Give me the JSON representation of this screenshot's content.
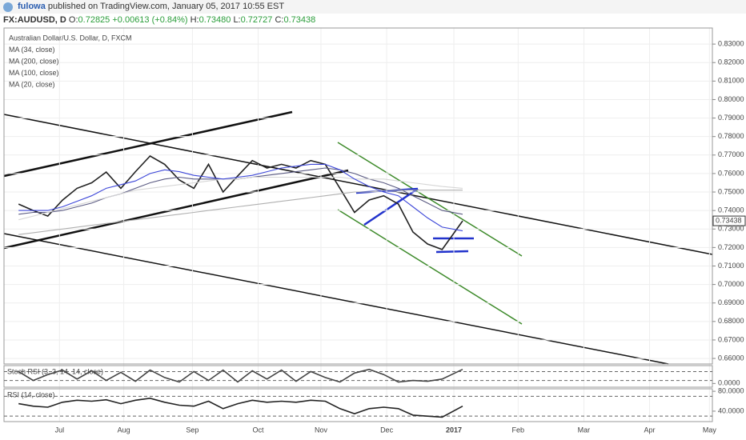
{
  "header": {
    "user": "fulowa",
    "published": "published on TradingView.com, January 05, 2017 10:55 EST"
  },
  "quote": {
    "symbol": "FX:AUDUSD, D",
    "open_label": "O:",
    "open": "0.72825",
    "change": "+0.00613 (+0.84%)",
    "high_label": "H:",
    "high": "0.73480",
    "low_label": "L:",
    "low": "0.72727",
    "close_label": "C:",
    "close": "0.73438"
  },
  "chart_data": [
    {
      "type": "line",
      "x": [
        1,
        2,
        3,
        4,
        5,
        6,
        7,
        8,
        9,
        10,
        11,
        12,
        13,
        14,
        15,
        16,
        17,
        18,
        19,
        20,
        21,
        22,
        23,
        24,
        25,
        26,
        27,
        28,
        29,
        30,
        31.4
      ],
      "xlim": [
        0,
        48.5
      ],
      "xticks": [
        {
          "value": 3.8,
          "label": "Jul"
        },
        {
          "value": 8.2,
          "label": "Aug"
        },
        {
          "value": 12.9,
          "label": "Sep"
        },
        {
          "value": 17.4,
          "label": "Oct"
        },
        {
          "value": 21.7,
          "label": "Nov"
        },
        {
          "value": 26.2,
          "label": "Dec"
        },
        {
          "value": 30.8,
          "label": "2017"
        },
        {
          "value": 35.2,
          "label": "Feb"
        },
        {
          "value": 39.7,
          "label": "Mar"
        },
        {
          "value": 44.2,
          "label": "Apr"
        },
        {
          "value": 48.3,
          "label": "May"
        }
      ],
      "ylim": [
        0.657,
        0.8387
      ],
      "yticks": [
        {
          "value": 0.83,
          "label": "0.83000"
        },
        {
          "value": 0.82,
          "label": "0.82000"
        },
        {
          "value": 0.81,
          "label": "0.81000"
        },
        {
          "value": 0.8,
          "label": "0.80000"
        },
        {
          "value": 0.79,
          "label": "0.79000"
        },
        {
          "value": 0.78,
          "label": "0.78000"
        },
        {
          "value": 0.77,
          "label": "0.77000"
        },
        {
          "value": 0.76,
          "label": "0.76000"
        },
        {
          "value": 0.75,
          "label": "0.75000"
        },
        {
          "value": 0.74,
          "label": "0.74000"
        },
        {
          "value": 0.73,
          "label": "0.73000"
        },
        {
          "value": 0.72,
          "label": "0.72000"
        },
        {
          "value": 0.71,
          "label": "0.71000"
        },
        {
          "value": 0.7,
          "label": "0.70000"
        },
        {
          "value": 0.69,
          "label": "0.69000"
        },
        {
          "value": 0.68,
          "label": "0.68000"
        },
        {
          "value": 0.67,
          "label": "0.67000"
        },
        {
          "value": 0.66,
          "label": "0.66000"
        }
      ],
      "grid": true,
      "series": [
        {
          "name": "Australian Dollar/U.S. Dollar, D, FXCM",
          "color": "#222222",
          "values": [
            0.7435,
            0.74,
            0.737,
            0.7456,
            0.752,
            0.755,
            0.7608,
            0.752,
            0.761,
            0.7695,
            0.765,
            0.7565,
            0.752,
            0.765,
            0.75,
            0.7587,
            0.767,
            0.763,
            0.765,
            0.763,
            0.767,
            0.765,
            0.752,
            0.739,
            0.7457,
            0.748,
            0.7435,
            0.7284,
            0.7219,
            0.7189,
            0.7344
          ]
        },
        {
          "name": "MA (34, close)",
          "color": "#5a5a82",
          "values": [
            0.738,
            0.739,
            0.739,
            0.74,
            0.742,
            0.744,
            0.747,
            0.749,
            0.752,
            0.755,
            0.757,
            0.758,
            0.757,
            0.757,
            0.757,
            0.757,
            0.758,
            0.759,
            0.76,
            0.761,
            0.762,
            0.763,
            0.762,
            0.76,
            0.757,
            0.755,
            0.752,
            0.748,
            0.744,
            0.74,
            0.738
          ]
        },
        {
          "name": "MA (200, close)",
          "color": "#b0b0b0",
          "values": [
            0.727,
            0.728,
            0.729,
            0.73,
            0.731,
            0.732,
            0.733,
            0.734,
            0.735,
            0.736,
            0.737,
            0.738,
            0.739,
            0.74,
            0.741,
            0.742,
            0.743,
            0.744,
            0.745,
            0.746,
            0.747,
            0.748,
            0.749,
            0.75,
            0.75,
            0.751,
            0.751,
            0.751,
            0.751,
            0.751,
            0.751
          ]
        },
        {
          "name": "MA (100, close)",
          "color": "#d6d6d6",
          "values": [
            0.735,
            0.737,
            0.739,
            0.741,
            0.743,
            0.745,
            0.747,
            0.749,
            0.751,
            0.752,
            0.753,
            0.754,
            0.755,
            0.756,
            0.757,
            0.757,
            0.758,
            0.758,
            0.758,
            0.758,
            0.758,
            0.758,
            0.758,
            0.757,
            0.757,
            0.757,
            0.756,
            0.755,
            0.754,
            0.753,
            0.752
          ]
        },
        {
          "name": "MA (20, close)",
          "color": "#3c46d8",
          "values": [
            0.74,
            0.74,
            0.74,
            0.742,
            0.745,
            0.748,
            0.752,
            0.754,
            0.756,
            0.76,
            0.762,
            0.761,
            0.759,
            0.758,
            0.757,
            0.758,
            0.759,
            0.761,
            0.763,
            0.764,
            0.765,
            0.765,
            0.762,
            0.757,
            0.753,
            0.75,
            0.748,
            0.742,
            0.736,
            0.731,
            0.729
          ]
        }
      ]
    },
    {
      "type": "line",
      "title": "Stoch RSI (3, 3, 14, 14, close)",
      "x": [
        1,
        2,
        3,
        4,
        5,
        6,
        7,
        8,
        9,
        10,
        11,
        12,
        13,
        14,
        15,
        16,
        17,
        18,
        19,
        20,
        21,
        22,
        23,
        24,
        25,
        26,
        27,
        28,
        29,
        30,
        31.4
      ],
      "xlim": [
        0,
        48.5
      ],
      "ylim": [
        -25,
        120
      ],
      "yticks": [
        {
          "value": 0,
          "label": "0.0000"
        }
      ],
      "levels": [
        20,
        80
      ],
      "series": [
        {
          "name": "Stoch RSI",
          "color": "#444444",
          "values": [
            80,
            20,
            60,
            90,
            30,
            85,
            20,
            75,
            15,
            90,
            40,
            10,
            80,
            20,
            90,
            10,
            85,
            30,
            90,
            15,
            80,
            40,
            10,
            70,
            95,
            60,
            10,
            20,
            15,
            30,
            95
          ]
        }
      ]
    },
    {
      "type": "line",
      "title": "RSI (14, close)",
      "x": [
        1,
        2,
        3,
        4,
        5,
        6,
        7,
        8,
        9,
        10,
        11,
        12,
        13,
        14,
        15,
        16,
        17,
        18,
        19,
        20,
        21,
        22,
        23,
        24,
        25,
        26,
        27,
        28,
        29,
        30,
        31.4
      ],
      "xlim": [
        0,
        48.5
      ],
      "ylim": [
        19,
        85
      ],
      "yticks": [
        {
          "value": 80,
          "label": "80.0000"
        },
        {
          "value": 40,
          "label": "40.0000"
        }
      ],
      "levels": [
        30,
        70
      ],
      "series": [
        {
          "name": "RSI",
          "color": "#222222",
          "values": [
            55,
            50,
            48,
            58,
            62,
            60,
            63,
            55,
            62,
            66,
            58,
            52,
            50,
            60,
            45,
            55,
            62,
            58,
            60,
            58,
            62,
            60,
            45,
            35,
            45,
            48,
            45,
            32,
            30,
            28,
            50
          ]
        }
      ]
    }
  ]
}
